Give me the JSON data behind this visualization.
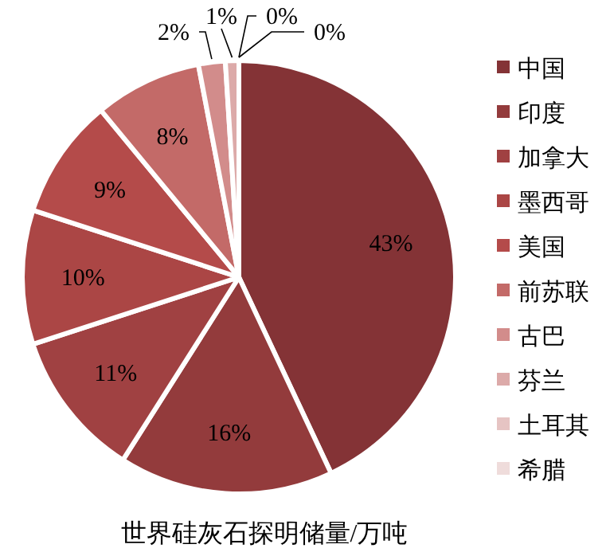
{
  "chart_data": {
    "type": "pie",
    "title": "世界硅灰石探明储量/万吨",
    "categories": [
      "中国",
      "印度",
      "加拿大",
      "墨西哥",
      "美国",
      "前苏联",
      "古巴",
      "芬兰",
      "土耳其",
      "希腊"
    ],
    "values": [
      43,
      16,
      11,
      10,
      9,
      8,
      2,
      1,
      0,
      0
    ],
    "value_labels": [
      "43%",
      "16%",
      "11%",
      "10%",
      "9%",
      "8%",
      "2%",
      "1%",
      "0%",
      "0%"
    ],
    "colors": [
      "#843336",
      "#933b3c",
      "#a04142",
      "#ab4645",
      "#b44b4a",
      "#c36a68",
      "#d28c8b",
      "#dcaaa9",
      "#e6c4c3",
      "#efdcdb"
    ],
    "legend": "right"
  }
}
